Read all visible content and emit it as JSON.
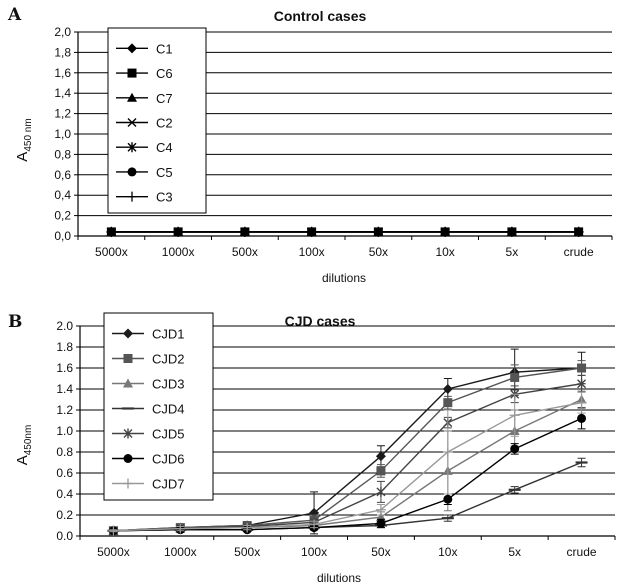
{
  "chart_data": [
    {
      "panel_label": "A",
      "title": "Control cases",
      "type": "line",
      "xlabel": "dilutions",
      "ylabel_main": "A",
      "ylabel_sub": "450 nm",
      "categories": [
        "5000x",
        "1000x",
        "500x",
        "100x",
        "50x",
        "10x",
        "5x",
        "crude"
      ],
      "yticks": [
        "0,0",
        "0,2",
        "0,4",
        "0,6",
        "0,8",
        "1,0",
        "1,2",
        "1,4",
        "1,6",
        "1,8",
        "2,0"
      ],
      "ylim": [
        0,
        2
      ],
      "grid": true,
      "legend_position": "top-left",
      "series": [
        {
          "name": "C1",
          "marker": "diamond",
          "color": "#000000",
          "values": [
            0.04,
            0.04,
            0.04,
            0.04,
            0.04,
            0.04,
            0.04,
            0.04
          ]
        },
        {
          "name": "C6",
          "marker": "square",
          "color": "#000000",
          "values": [
            0.04,
            0.04,
            0.04,
            0.04,
            0.04,
            0.04,
            0.04,
            0.04
          ]
        },
        {
          "name": "C7",
          "marker": "triangle",
          "color": "#000000",
          "values": [
            0.04,
            0.04,
            0.04,
            0.04,
            0.04,
            0.04,
            0.04,
            0.04
          ]
        },
        {
          "name": "C2",
          "marker": "x",
          "color": "#000000",
          "values": [
            0.04,
            0.04,
            0.04,
            0.04,
            0.04,
            0.04,
            0.04,
            0.04
          ]
        },
        {
          "name": "C4",
          "marker": "star",
          "color": "#000000",
          "values": [
            0.04,
            0.04,
            0.04,
            0.04,
            0.04,
            0.04,
            0.04,
            0.04
          ]
        },
        {
          "name": "C5",
          "marker": "circle",
          "color": "#000000",
          "values": [
            0.04,
            0.04,
            0.04,
            0.04,
            0.04,
            0.04,
            0.04,
            0.04
          ]
        },
        {
          "name": "C3",
          "marker": "plus",
          "color": "#000000",
          "values": [
            0.04,
            0.04,
            0.04,
            0.04,
            0.04,
            0.04,
            0.04,
            0.04
          ]
        }
      ]
    },
    {
      "panel_label": "B",
      "title": "CJD cases",
      "type": "line",
      "xlabel": "dilutions",
      "ylabel_main": "A",
      "ylabel_sub": "450nm",
      "categories": [
        "5000x",
        "1000x",
        "500x",
        "100x",
        "50x",
        "10x",
        "5x",
        "crude"
      ],
      "yticks": [
        "0.0",
        "0.2",
        "0.4",
        "0.6",
        "0.8",
        "1.0",
        "1.2",
        "1.4",
        "1.6",
        "1.8",
        "2.0"
      ],
      "ylim": [
        0,
        2
      ],
      "grid": true,
      "legend_position": "top-left",
      "series": [
        {
          "name": "CJD1",
          "marker": "diamond",
          "color": "#1a1a1a",
          "values": [
            0.05,
            0.08,
            0.1,
            0.22,
            0.76,
            1.4,
            1.56,
            1.6
          ],
          "errors": [
            0.02,
            0.02,
            0.03,
            0.2,
            0.1,
            0.1,
            0.22,
            0.15
          ]
        },
        {
          "name": "CJD2",
          "marker": "square",
          "color": "#555555",
          "values": [
            0.05,
            0.08,
            0.1,
            0.15,
            0.62,
            1.27,
            1.51,
            1.6
          ],
          "errors": [
            0.02,
            0.02,
            0.02,
            0.05,
            0.06,
            0.06,
            0.12,
            0.07
          ]
        },
        {
          "name": "CJD3",
          "marker": "triangle",
          "color": "#777777",
          "values": [
            0.05,
            0.07,
            0.08,
            0.1,
            0.18,
            0.62,
            1.0,
            1.3
          ],
          "errors": [
            0.01,
            0.02,
            0.02,
            0.03,
            0.05,
            0.38,
            0.2,
            0.08
          ]
        },
        {
          "name": "CJD4",
          "marker": "dash",
          "color": "#333333",
          "values": [
            0.05,
            0.06,
            0.06,
            0.08,
            0.1,
            0.17,
            0.44,
            0.7
          ],
          "errors": [
            0.01,
            0.01,
            0.01,
            0.02,
            0.02,
            0.03,
            0.03,
            0.04
          ]
        },
        {
          "name": "CJD5",
          "marker": "star",
          "color": "#444444",
          "values": [
            0.05,
            0.07,
            0.09,
            0.13,
            0.42,
            1.08,
            1.35,
            1.45
          ],
          "errors": [
            0.01,
            0.02,
            0.02,
            0.03,
            0.1,
            0.05,
            0.08,
            0.08
          ]
        },
        {
          "name": "CJD6",
          "marker": "circle",
          "color": "#000000",
          "values": [
            0.05,
            0.06,
            0.06,
            0.08,
            0.12,
            0.35,
            0.83,
            1.12
          ],
          "errors": [
            0.01,
            0.01,
            0.01,
            0.02,
            0.04,
            0.05,
            0.05,
            0.1
          ]
        },
        {
          "name": "CJD7",
          "marker": "plus",
          "color": "#999999",
          "values": [
            0.05,
            0.07,
            0.08,
            0.11,
            0.25,
            0.8,
            1.15,
            1.27
          ],
          "errors": [
            0.01,
            0.02,
            0.02,
            0.03,
            0.05,
            0.4,
            0.2,
            0.1
          ]
        }
      ]
    }
  ]
}
